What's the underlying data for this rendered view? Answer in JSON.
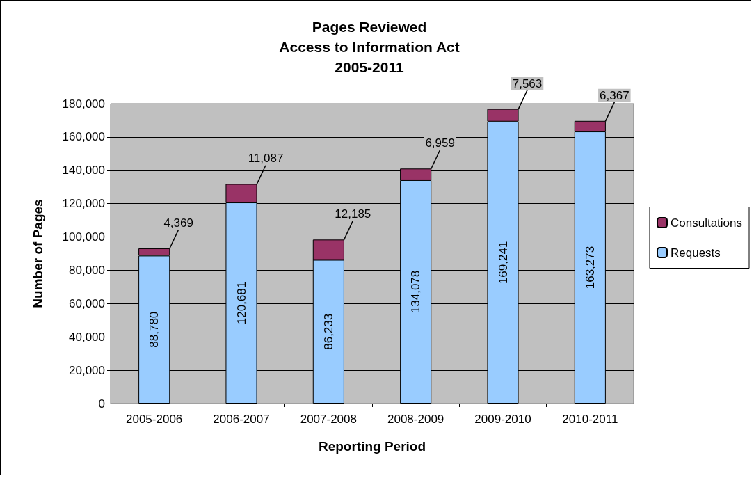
{
  "chart_data": {
    "type": "bar",
    "stacked": true,
    "title": "Pages Reviewed\nAccess to Information Act\n2005-2011",
    "xlabel": "Reporting Period",
    "ylabel": "Number of Pages",
    "categories": [
      "2005-2006",
      "2006-2007",
      "2007-2008",
      "2008-2009",
      "2009-2010",
      "2010-2011"
    ],
    "series": [
      {
        "name": "Requests",
        "color": "#99ccff",
        "values": [
          88780,
          120681,
          86233,
          134078,
          169241,
          163273
        ],
        "value_labels": [
          "88,780",
          "120,681",
          "86,233",
          "134,078",
          "169,241",
          "163,273"
        ]
      },
      {
        "name": "Consultations",
        "color": "#993366",
        "values": [
          4369,
          11087,
          12185,
          6959,
          7563,
          6367
        ],
        "value_labels": [
          "4,369",
          "11,087",
          "12,185",
          "6,959",
          "7,563",
          "6,367"
        ]
      }
    ],
    "ylim": [
      0,
      180000
    ],
    "yticks": [
      0,
      {
        "value": 20000,
        "label": "20,000"
      },
      {
        "value": 40000,
        "label": "40,000"
      },
      {
        "value": 60000,
        "label": "60,000"
      },
      {
        "value": 80000,
        "label": "80,000"
      },
      {
        "value": 100000,
        "label": "100,000"
      },
      {
        "value": 120000,
        "label": "120,000"
      },
      {
        "value": 140000,
        "label": "140,000"
      },
      {
        "value": 160000,
        "label": "160,000"
      },
      {
        "value": 180000,
        "label": "180,000"
      }
    ],
    "grid": "y",
    "legend": "right"
  }
}
